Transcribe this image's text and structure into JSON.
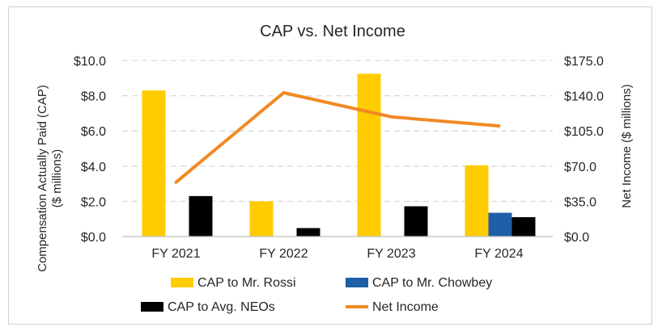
{
  "chart_data": {
    "type": "bar+line",
    "title": "CAP vs. Net Income",
    "categories": [
      "FY 2021",
      "FY 2022",
      "FY 2023",
      "FY 2024"
    ],
    "ylabel_left": [
      "Compensation Actually Paid (CAP)",
      "($ millions)"
    ],
    "ylabel_right": "Net Income ($ millions)",
    "ylim_left": [
      0,
      10
    ],
    "ylim_right": [
      0,
      175
    ],
    "yticks_left": [
      "$0.0",
      "$2.0",
      "$4.0",
      "$6.0",
      "$8.0",
      "$10.0"
    ],
    "yticks_right": [
      "$0.0",
      "$35.0",
      "$70.0",
      "$105.0",
      "$140.0",
      "$175.0"
    ],
    "grid": true,
    "series": [
      {
        "name": "CAP to Mr. Rossi",
        "type": "bar",
        "axis": "left",
        "color": "#FFCC00",
        "values": [
          8.3,
          2.0,
          9.25,
          4.05
        ]
      },
      {
        "name": "CAP to Mr. Chowbey",
        "type": "bar",
        "axis": "left",
        "color": "#1F5FA6",
        "values": [
          null,
          null,
          null,
          1.35
        ]
      },
      {
        "name": "CAP to Avg. NEOs",
        "type": "bar",
        "axis": "left",
        "color": "#000000",
        "values": [
          2.3,
          0.48,
          1.72,
          1.1
        ]
      },
      {
        "name": "Net Income",
        "type": "line",
        "axis": "right",
        "color": "#F08A24",
        "values": [
          54,
          143,
          119,
          110
        ]
      }
    ],
    "legend": "bottom"
  }
}
